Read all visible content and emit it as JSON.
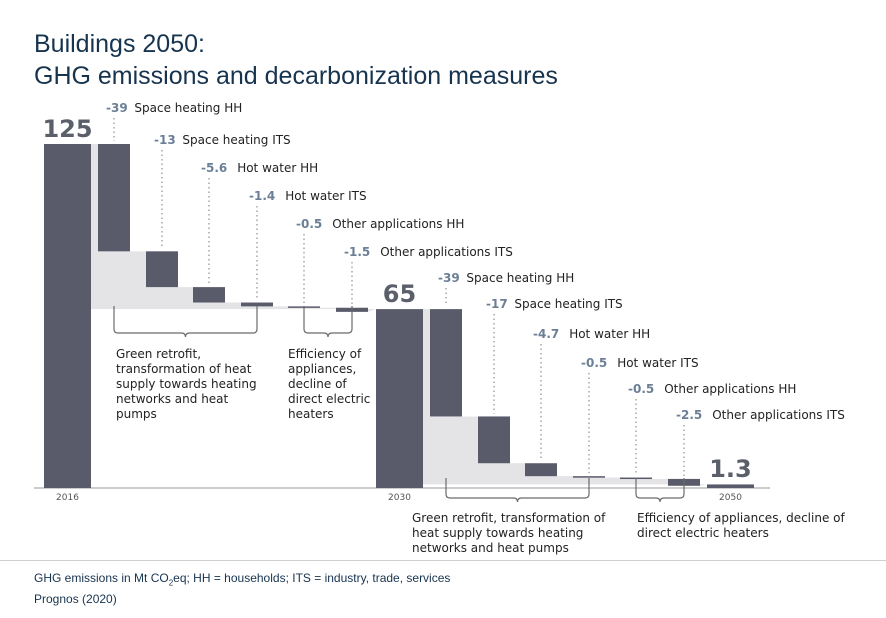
{
  "title": {
    "line1": "Buildings 2050:",
    "line2": "GHG emissions and decarbonization measures"
  },
  "footnote": {
    "part1": "GHG emissions in Mt CO",
    "sub": "2",
    "part2": "eq; HH = households; ITS = industry, trade, services"
  },
  "source": "Prognos (2020)",
  "colors": {
    "bar": "#595b6b",
    "band": "#e4e4e7",
    "text_value": "#6c7f96",
    "title": "#17344f"
  },
  "chart_data": {
    "type": "bar",
    "subtype": "waterfall",
    "ylim": [
      0,
      125
    ],
    "totals": [
      {
        "category": "2016",
        "value": 125,
        "label": "125"
      },
      {
        "category": "2030",
        "value": 65,
        "label": "65"
      },
      {
        "category": "2050",
        "value": 1.3,
        "label": "1.3"
      }
    ],
    "steps": [
      {
        "period": "2016-2030",
        "value": -39,
        "value_label": "-39",
        "name": "Space heating HH"
      },
      {
        "period": "2016-2030",
        "value": -13,
        "value_label": "-13",
        "name": "Space heating ITS"
      },
      {
        "period": "2016-2030",
        "value": -5.6,
        "value_label": "-5.6",
        "name": "Hot water HH"
      },
      {
        "period": "2016-2030",
        "value": -1.4,
        "value_label": "-1.4",
        "name": "Hot water ITS"
      },
      {
        "period": "2016-2030",
        "value": -0.5,
        "value_label": "-0.5",
        "name": "Other applications HH"
      },
      {
        "period": "2016-2030",
        "value": -1.5,
        "value_label": "-1.5",
        "name": "Other applications ITS"
      },
      {
        "period": "2030-2050",
        "value": -39,
        "value_label": "-39",
        "name": "Space heating HH"
      },
      {
        "period": "2030-2050",
        "value": -17,
        "value_label": "-17",
        "name": "Space heating ITS"
      },
      {
        "period": "2030-2050",
        "value": -4.7,
        "value_label": "-4.7",
        "name": "Hot water HH"
      },
      {
        "period": "2030-2050",
        "value": -0.5,
        "value_label": "-0.5",
        "name": "Hot water ITS"
      },
      {
        "period": "2030-2050",
        "value": -0.5,
        "value_label": "-0.5",
        "name": "Other applications HH"
      },
      {
        "period": "2030-2050",
        "value": -2.5,
        "value_label": "-2.5",
        "name": "Other applications ITS"
      }
    ],
    "groups": [
      {
        "lines": [
          "Green retrofit,",
          "transformation of heat",
          "supply towards heating",
          "networks and heat",
          "pumps"
        ]
      },
      {
        "lines": [
          "Efficiency of",
          "appliances,",
          "decline of",
          "direct electric",
          "heaters"
        ]
      },
      {
        "lines": [
          "Green retrofit, transformation of",
          "heat supply towards heating",
          "networks and heat pumps"
        ]
      },
      {
        "lines": [
          "Efficiency of appliances, decline of",
          "direct electric heaters"
        ]
      }
    ]
  }
}
